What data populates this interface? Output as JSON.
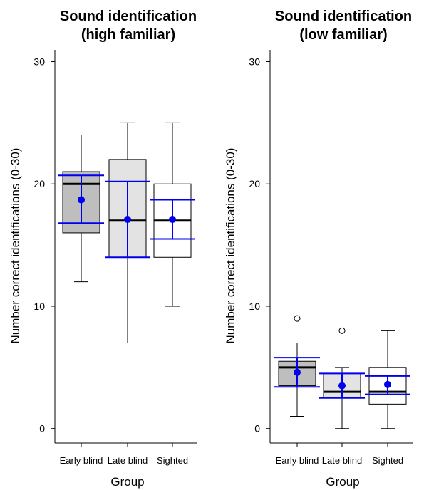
{
  "colors": {
    "box_early": "#bebebe",
    "box_late": "#e3e3e3",
    "box_sighted": "#ffffff",
    "mean_ci": "#0000ee",
    "median": "#000000"
  },
  "chart_data": [
    {
      "type": "box",
      "title": [
        "Sound identification",
        "(high familiar)"
      ],
      "xlabel": "Group",
      "ylabel": "Number correct identifications (0-30)",
      "ylim": [
        -1,
        31
      ],
      "yticks": [
        0,
        10,
        20,
        30
      ],
      "grid": false,
      "categories": [
        "Early blind",
        "Late blind",
        "Sighted"
      ],
      "boxes": [
        {
          "whisker_low": 12,
          "q1": 16,
          "median": 20,
          "q3": 21,
          "whisker_high": 24,
          "outliers": [],
          "mean": 18.7,
          "ci_low": 16.8,
          "ci_high": 20.7,
          "fill": "#bebebe"
        },
        {
          "whisker_low": 7,
          "q1": 14,
          "median": 17,
          "q3": 22,
          "whisker_high": 25,
          "outliers": [],
          "mean": 17.1,
          "ci_low": 14.0,
          "ci_high": 20.2,
          "fill": "#e3e3e3"
        },
        {
          "whisker_low": 10,
          "q1": 14,
          "median": 17,
          "q3": 20,
          "whisker_high": 25,
          "outliers": [],
          "mean": 17.1,
          "ci_low": 15.5,
          "ci_high": 18.7,
          "fill": "#ffffff"
        }
      ]
    },
    {
      "type": "box",
      "title": [
        "Sound identification",
        "(low familiar)"
      ],
      "xlabel": "Group",
      "ylabel": "Number correct identifications (0-30)",
      "ylim": [
        -1,
        31
      ],
      "yticks": [
        0,
        10,
        20,
        30
      ],
      "grid": false,
      "categories": [
        "Early blind",
        "Late blind",
        "Sighted"
      ],
      "boxes": [
        {
          "whisker_low": 1,
          "q1": 3.5,
          "median": 5,
          "q3": 5.5,
          "whisker_high": 7,
          "outliers": [
            9
          ],
          "mean": 4.6,
          "ci_low": 3.4,
          "ci_high": 5.8,
          "fill": "#bebebe"
        },
        {
          "whisker_low": 0,
          "q1": 2.5,
          "median": 3,
          "q3": 4.5,
          "whisker_high": 5,
          "outliers": [
            8
          ],
          "mean": 3.5,
          "ci_low": 2.5,
          "ci_high": 4.5,
          "fill": "#e3e3e3"
        },
        {
          "whisker_low": 0,
          "q1": 2,
          "median": 3,
          "q3": 5,
          "whisker_high": 8,
          "outliers": [],
          "mean": 3.6,
          "ci_low": 2.8,
          "ci_high": 4.3,
          "fill": "#ffffff"
        }
      ]
    }
  ]
}
